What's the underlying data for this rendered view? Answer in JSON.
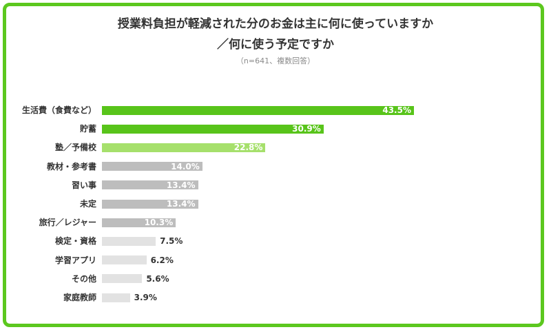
{
  "header": {
    "title_line1": "授業料負担が軽減された分のお金は主に何に使っていますか",
    "title_line2": "／何に使う予定ですか",
    "note": "（n=641、複数回答）"
  },
  "colors": {
    "frame": "#5cc81e",
    "bar_dark_green": "#58c41a",
    "bar_light_green": "#a6e06c",
    "bar_gray": "#bdbdbd",
    "bar_light_gray": "#e2e2e2"
  },
  "chart_data": {
    "type": "bar",
    "orientation": "horizontal",
    "unit": "%",
    "categories": [
      "生活費（食費など）",
      "貯蓄",
      "塾／予備校",
      "教材・参考書",
      "習い事",
      "未定",
      "旅行／レジャー",
      "検定・資格",
      "学習アプリ",
      "その他",
      "家庭教師"
    ],
    "values": [
      43.5,
      30.9,
      22.8,
      14.0,
      13.4,
      13.4,
      10.3,
      7.5,
      6.2,
      5.6,
      3.9
    ],
    "value_labels": [
      "43.5%",
      "30.9%",
      "22.8%",
      "14.0%",
      "13.4%",
      "13.4%",
      "10.3%",
      "7.5%",
      "6.2%",
      "5.6%",
      "3.9%"
    ],
    "bar_colors": [
      "#58c41a",
      "#58c41a",
      "#a6e06c",
      "#bdbdbd",
      "#bdbdbd",
      "#bdbdbd",
      "#bdbdbd",
      "#e2e2e2",
      "#e2e2e2",
      "#e2e2e2",
      "#e2e2e2"
    ],
    "label_inside": [
      true,
      true,
      true,
      true,
      true,
      true,
      true,
      false,
      false,
      false,
      false
    ],
    "title": "授業料負担が軽減された分のお金は主に何に使っていますか／何に使う予定ですか",
    "xlabel": "",
    "ylabel": "",
    "grid": false,
    "legend": "none"
  }
}
